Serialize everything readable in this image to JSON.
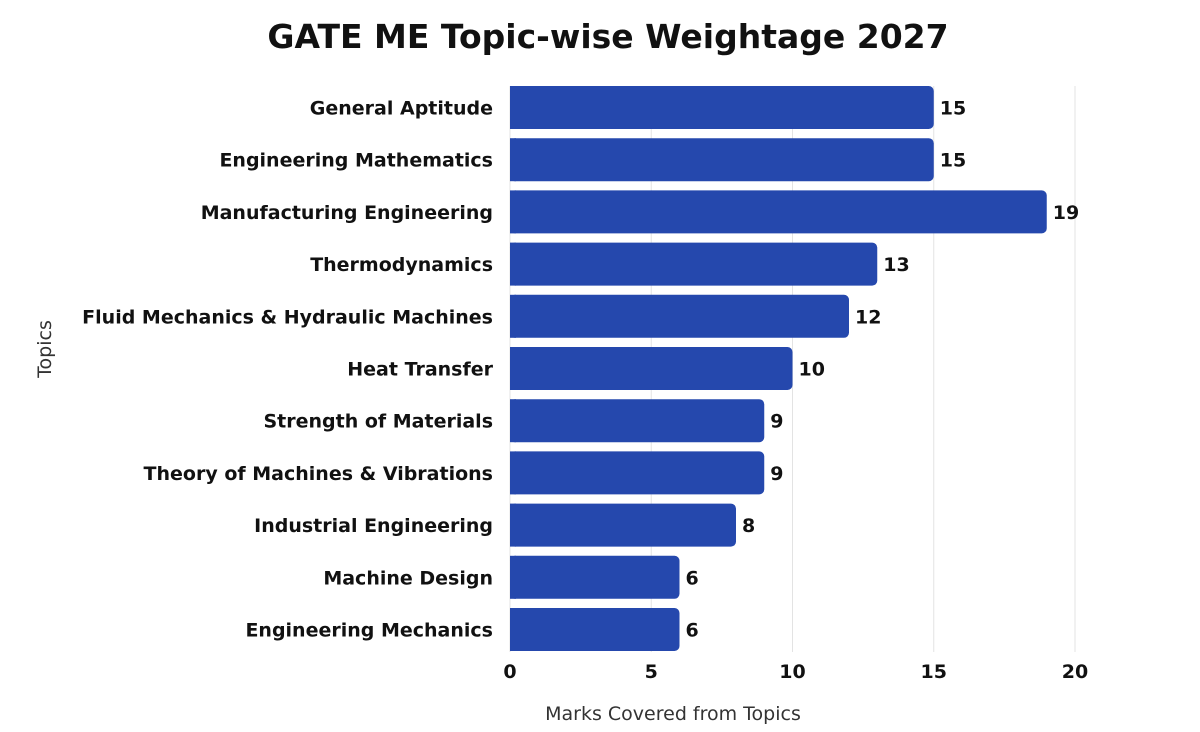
{
  "chart_data": {
    "type": "bar",
    "orientation": "horizontal",
    "title": "GATE ME Topic-wise Weightage 2027",
    "xlabel": "Marks Covered from Topics",
    "ylabel": "Topics",
    "categories": [
      "General Aptitude",
      "Engineering Mathematics",
      "Manufacturing Engineering",
      "Thermodynamics",
      "Fluid Mechanics & Hydraulic Machines",
      "Heat Transfer",
      "Strength of Materials",
      "Theory of Machines & Vibrations",
      "Industrial Engineering",
      "Machine Design",
      "Engineering Mechanics"
    ],
    "values": [
      15,
      15,
      19,
      13,
      12,
      10,
      9,
      9,
      8,
      6,
      6
    ],
    "xlim": [
      0,
      20
    ],
    "xticks": [
      "0",
      "5",
      "10",
      "15",
      "20"
    ],
    "grid": true,
    "bar_color": "#2548ad",
    "data_labels": true
  }
}
